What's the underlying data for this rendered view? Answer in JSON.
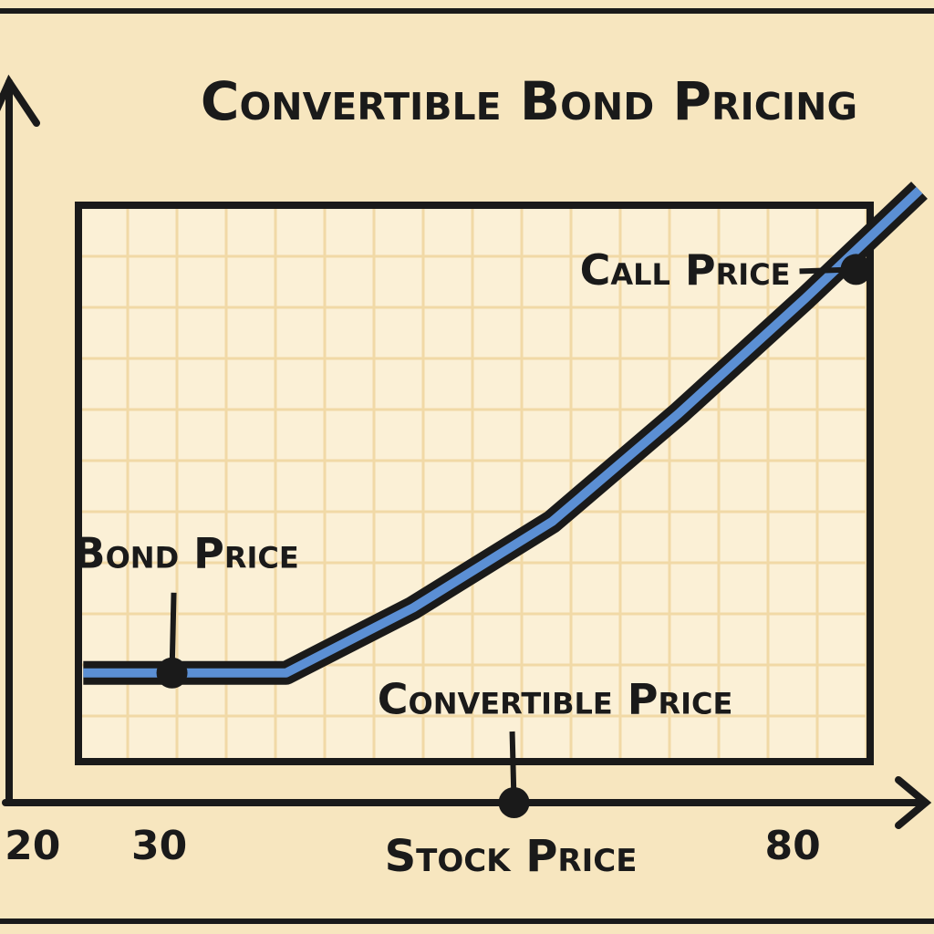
{
  "chart_data": {
    "type": "line",
    "title": "Convertible Bond Pricing",
    "x_label": "Stock Price",
    "x": [
      24,
      40,
      50,
      61,
      71,
      81,
      90
    ],
    "series": [
      {
        "color": "#5b8fd4",
        "values": [
          18,
          18,
          27,
          39,
          54,
          70,
          85
        ]
      }
    ],
    "xlim": [
      18,
      90
    ],
    "xticks": [
      20,
      30,
      80
    ],
    "ylim": [
      0,
      100
    ],
    "annotations": [
      {
        "text": "Call Price",
        "x": 85,
        "y": 74
      },
      {
        "text": "Bond Price",
        "x": 31,
        "y": 18
      },
      {
        "text": "Convertible Price",
        "x": 58,
        "y": 0
      }
    ]
  }
}
